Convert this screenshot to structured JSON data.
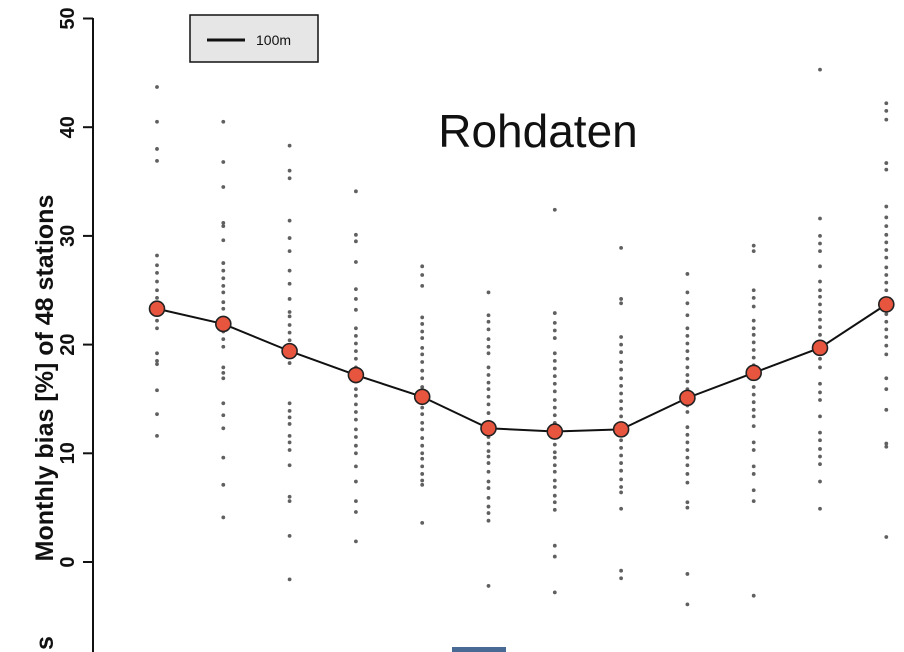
{
  "colors": {
    "background": "#ffffff",
    "axis": "#111111",
    "scatter": "#606060",
    "mean_marker": "#e8553e",
    "mean_stroke": "#222222",
    "mean_line": "#111111",
    "legend_bg": "#e6e6e6",
    "bottom_mark": "#4a6a96"
  },
  "chart_data": {
    "type": "scatter",
    "title": "Rohdaten",
    "ylabel": "Monthly bias [%] of 48 stations",
    "ylabel_cut_fragment": "s",
    "ylim": [
      -6,
      50
    ],
    "yticks": [
      "0",
      "10",
      "20",
      "30",
      "40",
      "50"
    ],
    "legend": {
      "label": "100m",
      "placement": "top-left"
    },
    "mean_series": {
      "x": [
        1,
        2,
        3,
        4,
        5,
        6,
        7,
        8,
        9,
        10,
        11,
        12
      ],
      "values": [
        23.3,
        21.9,
        19.4,
        17.2,
        15.2,
        12.3,
        12.0,
        12.2,
        15.1,
        17.4,
        19.7,
        23.7
      ]
    },
    "station_points": [
      {
        "x": 1,
        "values": [
          43.7,
          40.5,
          38.0,
          36.9,
          28.2,
          27.3,
          26.6,
          25.8,
          25.0,
          24.3,
          23.6,
          22.9,
          22.2,
          21.5,
          19.2,
          18.5,
          18.2,
          15.8,
          13.6,
          11.6
        ]
      },
      {
        "x": 2,
        "values": [
          40.5,
          36.8,
          34.5,
          31.2,
          30.9,
          29.6,
          27.5,
          26.8,
          26.1,
          25.4,
          24.8,
          23.9,
          23.3,
          21.2,
          20.5,
          19.8,
          17.9,
          17.4,
          16.9,
          14.6,
          13.5,
          12.3,
          9.6,
          7.1,
          4.1
        ]
      },
      {
        "x": 3,
        "values": [
          38.3,
          36.0,
          35.3,
          31.4,
          29.8,
          28.6,
          26.8,
          25.6,
          24.2,
          23.0,
          22.6,
          21.8,
          21.1,
          20.4,
          19.6,
          19.0,
          18.3,
          14.6,
          13.9,
          13.3,
          12.7,
          11.6,
          11.0,
          10.3,
          8.9,
          6.0,
          5.6,
          2.4,
          -1.6
        ]
      },
      {
        "x": 4,
        "values": [
          34.1,
          30.1,
          29.5,
          27.6,
          25.1,
          24.2,
          23.2,
          21.5,
          20.8,
          20.1,
          19.4,
          18.7,
          17.9,
          17.4,
          16.6,
          15.9,
          15.3,
          14.5,
          13.8,
          13.1,
          12.2,
          11.5,
          10.7,
          10.0,
          8.8,
          7.4,
          5.6,
          4.6,
          1.9
        ]
      },
      {
        "x": 5,
        "values": [
          27.2,
          26.4,
          25.4,
          22.5,
          21.9,
          21.2,
          20.6,
          19.7,
          19.1,
          18.4,
          17.6,
          16.9,
          16.1,
          15.4,
          14.2,
          13.6,
          12.8,
          12.2,
          11.4,
          10.7,
          10.0,
          9.5,
          8.8,
          8.1,
          7.5,
          7.1,
          3.6
        ]
      },
      {
        "x": 6,
        "values": [
          24.8,
          22.7,
          22.1,
          21.4,
          20.5,
          19.8,
          19.2,
          17.9,
          17.2,
          16.5,
          15.9,
          15.2,
          14.5,
          13.7,
          12.9,
          12.2,
          11.5,
          10.9,
          10.2,
          9.7,
          9.1,
          8.3,
          7.4,
          6.8,
          5.9,
          5.1,
          4.5,
          3.8,
          -2.2
        ]
      },
      {
        "x": 7,
        "values": [
          32.4,
          22.9,
          22.0,
          21.3,
          20.6,
          19.2,
          18.5,
          17.8,
          17.1,
          16.4,
          15.7,
          14.9,
          14.2,
          13.5,
          12.8,
          12.1,
          11.5,
          10.8,
          10.1,
          9.6,
          8.9,
          8.3,
          7.5,
          6.9,
          6.1,
          5.5,
          4.8,
          1.5,
          0.5,
          -2.8
        ]
      },
      {
        "x": 8,
        "values": [
          28.9,
          24.2,
          23.8,
          20.7,
          20.0,
          19.3,
          18.4,
          17.7,
          16.9,
          16.2,
          15.5,
          14.8,
          14.1,
          13.4,
          12.7,
          11.9,
          11.2,
          10.5,
          9.8,
          9.1,
          8.4,
          7.6,
          6.9,
          6.4,
          4.9,
          -0.8,
          -1.5
        ]
      },
      {
        "x": 9,
        "values": [
          26.5,
          24.8,
          23.8,
          22.7,
          21.5,
          20.8,
          20.1,
          19.4,
          18.7,
          17.9,
          17.2,
          16.6,
          15.9,
          15.2,
          14.4,
          13.8,
          12.4,
          11.7,
          11.0,
          10.3,
          9.6,
          8.9,
          8.1,
          7.3,
          5.5,
          5.0,
          -1.1,
          -3.9
        ]
      },
      {
        "x": 10,
        "values": [
          29.1,
          28.6,
          25.0,
          24.3,
          23.5,
          22.2,
          21.5,
          20.9,
          20.2,
          19.5,
          18.8,
          18.1,
          17.4,
          16.1,
          15.4,
          14.7,
          14.0,
          13.4,
          12.5,
          11.0,
          10.3,
          8.8,
          8.1,
          6.6,
          5.6,
          -3.1
        ]
      },
      {
        "x": 11,
        "values": [
          45.3,
          31.6,
          30.0,
          29.3,
          28.6,
          27.2,
          25.8,
          25.0,
          24.4,
          23.7,
          23.0,
          22.3,
          21.6,
          20.9,
          20.2,
          19.5,
          18.7,
          17.9,
          16.4,
          15.6,
          14.9,
          13.4,
          11.9,
          11.2,
          10.4,
          9.7,
          9.0,
          7.4,
          4.9
        ]
      },
      {
        "x": 12,
        "values": [
          42.2,
          41.5,
          40.7,
          36.7,
          36.1,
          32.7,
          31.7,
          30.9,
          30.1,
          29.4,
          28.7,
          28.0,
          27.1,
          26.4,
          25.7,
          25.0,
          24.2,
          23.5,
          22.8,
          22.1,
          21.4,
          20.7,
          19.9,
          19.1,
          16.9,
          15.9,
          14.0,
          10.9,
          10.6,
          2.3
        ]
      }
    ]
  }
}
